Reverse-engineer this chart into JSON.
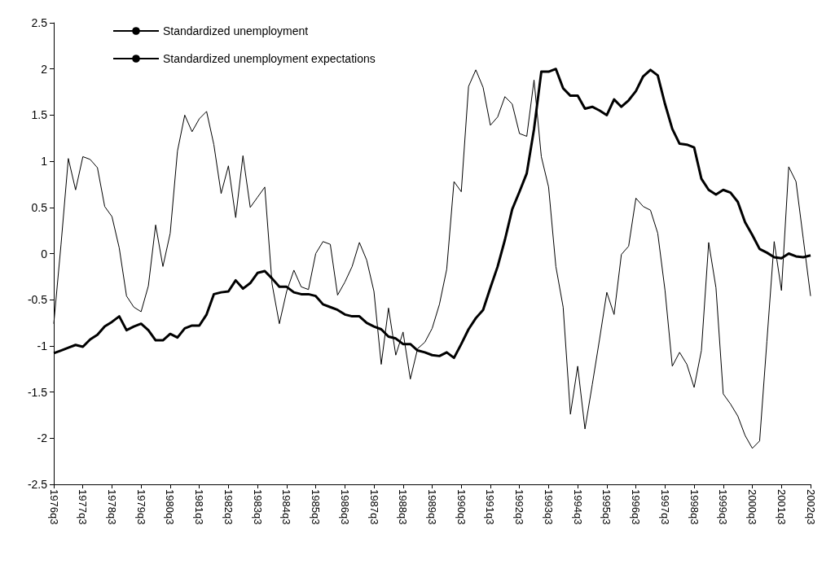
{
  "chart_data": {
    "type": "line",
    "categories": [
      "1976q3",
      null,
      null,
      null,
      "1977q3",
      null,
      null,
      null,
      "1978q3",
      null,
      null,
      null,
      "1979q3",
      null,
      null,
      null,
      "1980q3",
      null,
      null,
      null,
      "1981q3",
      null,
      null,
      null,
      "1982q3",
      null,
      null,
      null,
      "1983q3",
      null,
      null,
      null,
      "1984q3",
      null,
      null,
      null,
      "1985q3",
      null,
      null,
      null,
      "1986q3",
      null,
      null,
      null,
      "1987q3",
      null,
      null,
      null,
      "1988q3",
      null,
      null,
      null,
      "1989q3",
      null,
      null,
      null,
      "1990q3",
      null,
      null,
      null,
      "1991q3",
      null,
      null,
      null,
      "1992q3",
      null,
      null,
      null,
      "1993q3",
      null,
      null,
      null,
      "1994q3",
      null,
      null,
      null,
      "1995q3",
      null,
      null,
      null,
      "1996q3",
      null,
      null,
      null,
      "1997q3",
      null,
      null,
      null,
      "1998q3",
      null,
      null,
      null,
      "1999q3",
      null,
      null,
      null,
      "2000q3",
      null,
      null,
      null,
      "2001q3",
      null,
      null,
      null,
      "2002q3"
    ],
    "series": [
      {
        "name": "Standardized unemployment",
        "color": "#000000",
        "values": [
          -1.08,
          -1.05,
          -1.02,
          -0.99,
          -1.01,
          -0.93,
          -0.88,
          -0.79,
          -0.74,
          -0.68,
          -0.83,
          -0.79,
          -0.76,
          -0.83,
          -0.94,
          -0.94,
          -0.87,
          -0.91,
          -0.81,
          -0.78,
          -0.78,
          -0.66,
          -0.44,
          -0.42,
          -0.41,
          -0.29,
          -0.38,
          -0.32,
          -0.21,
          -0.19,
          -0.27,
          -0.36,
          -0.36,
          -0.42,
          -0.44,
          -0.44,
          -0.46,
          -0.55,
          -0.58,
          -0.61,
          -0.66,
          -0.68,
          -0.68,
          -0.75,
          -0.79,
          -0.82,
          -0.9,
          -0.92,
          -0.98,
          -0.98,
          -1.05,
          -1.07,
          -1.1,
          -1.11,
          -1.07,
          -1.13,
          -0.98,
          -0.82,
          -0.7,
          -0.61,
          -0.37,
          -0.14,
          0.15,
          0.48,
          0.67,
          0.87,
          1.35,
          1.97,
          1.97,
          2.0,
          1.79,
          1.71,
          1.71,
          1.57,
          1.59,
          1.55,
          1.5,
          1.67,
          1.59,
          1.66,
          1.76,
          1.92,
          1.99,
          1.93,
          1.62,
          1.35,
          1.19,
          1.18,
          1.15,
          0.81,
          0.69,
          0.64,
          0.69,
          0.66,
          0.56,
          0.34,
          0.2,
          0.05,
          0.01,
          -0.04,
          -0.05,
          0.0,
          -0.03,
          -0.04,
          -0.02
        ]
      },
      {
        "name": "Standardized unemployment expectations",
        "color": "#000000",
        "values": [
          -0.76,
          0.1,
          1.03,
          0.69,
          1.05,
          1.02,
          0.93,
          0.51,
          0.4,
          0.06,
          -0.46,
          -0.58,
          -0.63,
          -0.35,
          0.31,
          -0.14,
          0.22,
          1.11,
          1.5,
          1.32,
          1.46,
          1.54,
          1.18,
          0.65,
          0.95,
          0.39,
          1.06,
          0.5,
          0.61,
          0.72,
          -0.33,
          -0.76,
          -0.41,
          -0.18,
          -0.36,
          -0.39,
          0.0,
          0.13,
          0.1,
          -0.45,
          -0.31,
          -0.14,
          0.12,
          -0.07,
          -0.41,
          -1.2,
          -0.59,
          -1.1,
          -0.85,
          -1.36,
          -1.03,
          -0.96,
          -0.81,
          -0.55,
          -0.17,
          0.78,
          0.67,
          1.81,
          1.99,
          1.8,
          1.39,
          1.48,
          1.7,
          1.62,
          1.3,
          1.27,
          1.88,
          1.05,
          0.72,
          -0.14,
          -0.58,
          -1.74,
          -1.22,
          -1.9,
          -1.42,
          -0.93,
          -0.42,
          -0.66,
          -0.01,
          0.08,
          0.6,
          0.51,
          0.47,
          0.22,
          -0.4,
          -1.22,
          -1.07,
          -1.2,
          -1.45,
          -1.05,
          0.12,
          -0.37,
          -1.52,
          -1.63,
          -1.76,
          -1.97,
          -2.11,
          -2.03,
          -0.95,
          0.13,
          -0.4,
          0.94,
          0.78,
          0.16,
          -0.46
        ]
      }
    ],
    "ylim": [
      -2.5,
      2.5
    ],
    "yticks": [
      -2.5,
      -2,
      -1.5,
      -1,
      -0.5,
      0,
      0.5,
      1,
      1.5,
      2,
      2.5
    ],
    "grid": false,
    "legend": "top left",
    "marker": "none",
    "line_style": "solid"
  }
}
